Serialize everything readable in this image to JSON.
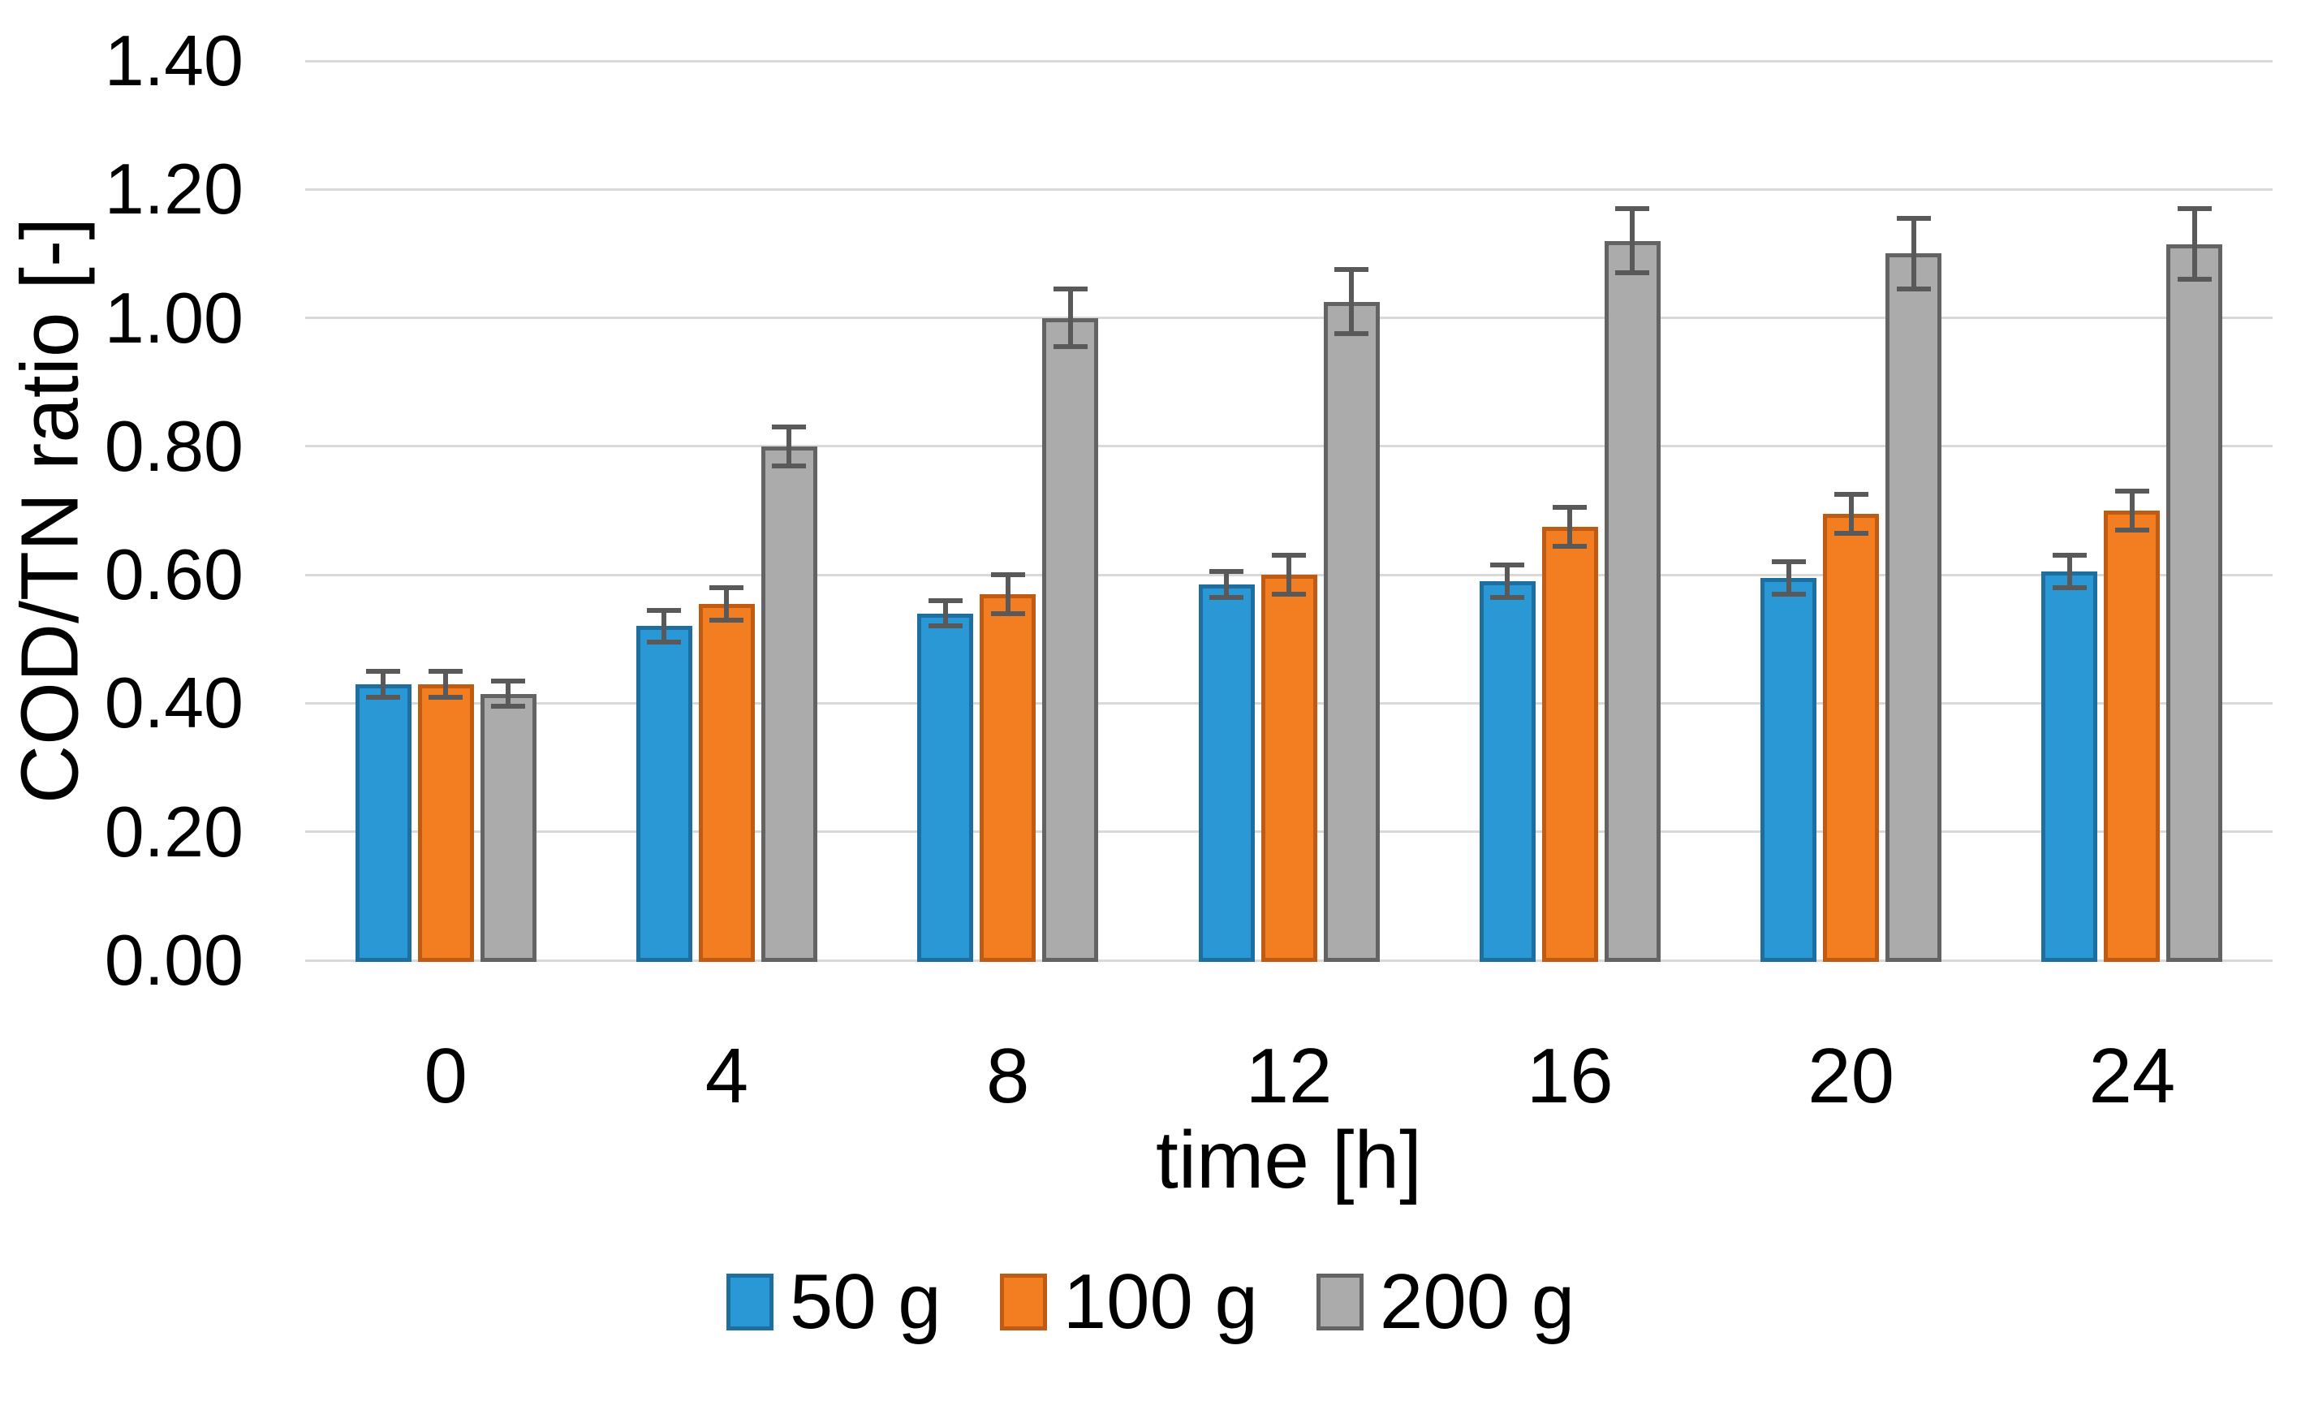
{
  "figure": {
    "background_color": "#ffffff",
    "text_color": "#000000",
    "gridline_color": "#d9d9d9",
    "error_bar_color": "#595959"
  },
  "chart_data": {
    "type": "bar",
    "title": "",
    "xlabel": "time [h]",
    "ylabel": "COD/TN ratio [-]",
    "categories": [
      "0",
      "4",
      "8",
      "12",
      "16",
      "20",
      "24"
    ],
    "y_ticks": [
      "0.00",
      "0.20",
      "0.40",
      "0.60",
      "0.80",
      "1.00",
      "1.20",
      "1.40"
    ],
    "ylim": [
      0.0,
      1.4
    ],
    "grid": "horizontal",
    "legend_position": "bottom",
    "error_bars": true,
    "series": [
      {
        "name": "50 g",
        "fill": "#2a98d5",
        "border": "#1f6ea0",
        "values": [
          0.43,
          0.52,
          0.54,
          0.585,
          0.59,
          0.595,
          0.605
        ],
        "errors": [
          0.02,
          0.025,
          0.02,
          0.02,
          0.025,
          0.025,
          0.025
        ]
      },
      {
        "name": "100 g",
        "fill": "#f37e21",
        "border": "#bf5b13",
        "values": [
          0.43,
          0.555,
          0.57,
          0.6,
          0.675,
          0.695,
          0.7
        ],
        "errors": [
          0.02,
          0.025,
          0.03,
          0.03,
          0.03,
          0.03,
          0.03
        ]
      },
      {
        "name": "200 g",
        "fill": "#ababab",
        "border": "#636363",
        "values": [
          0.415,
          0.8,
          1.0,
          1.025,
          1.12,
          1.1,
          1.115
        ],
        "errors": [
          0.02,
          0.03,
          0.045,
          0.05,
          0.05,
          0.055,
          0.055
        ]
      }
    ]
  }
}
